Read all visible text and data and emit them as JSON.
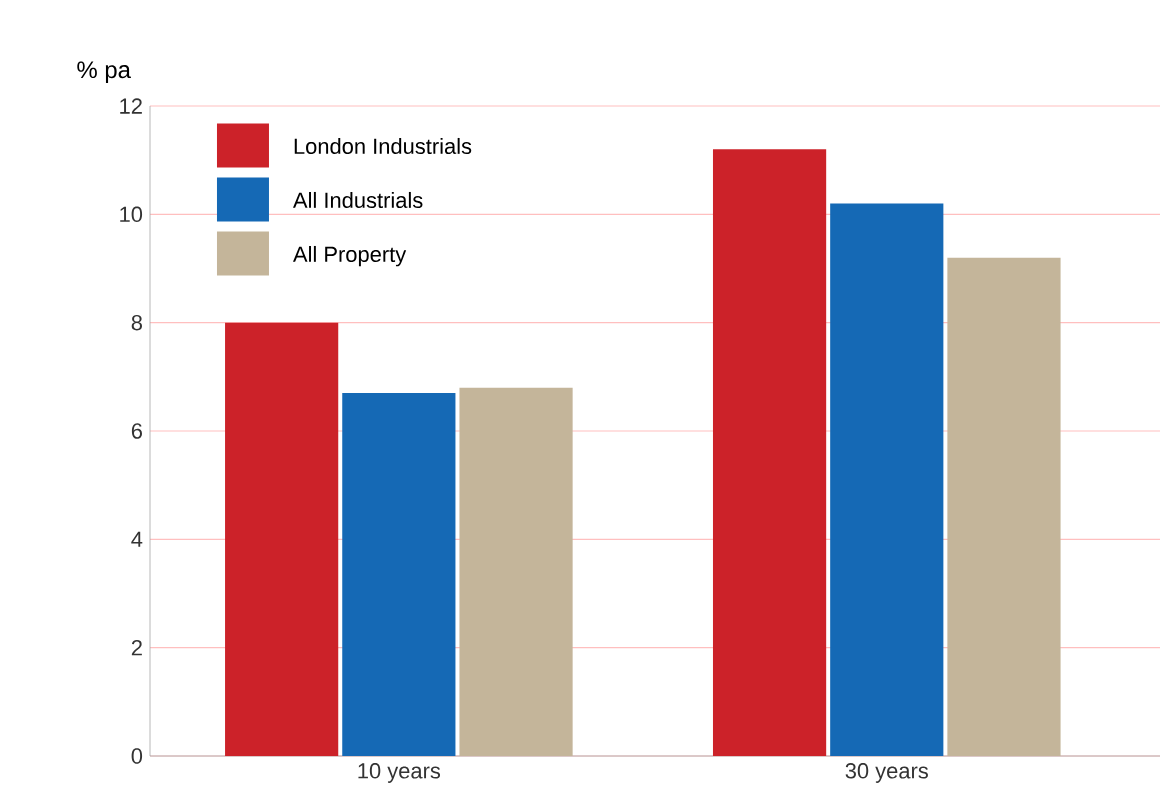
{
  "chart_data": {
    "type": "bar",
    "ylabel": "% pa",
    "categories": [
      "10 years",
      "30 years"
    ],
    "series": [
      {
        "name": "London Industrials",
        "color": "#cc2229",
        "values": [
          8.0,
          11.2
        ]
      },
      {
        "name": "All Industrials",
        "color": "#1569b5",
        "values": [
          6.7,
          10.2
        ]
      },
      {
        "name": "All Property",
        "color": "#c4b59a",
        "values": [
          6.8,
          9.2
        ]
      }
    ],
    "ylim": [
      0,
      12
    ],
    "yticks": [
      0,
      2,
      4,
      6,
      8,
      10,
      12
    ],
    "grid": "y",
    "legend": "top left"
  }
}
